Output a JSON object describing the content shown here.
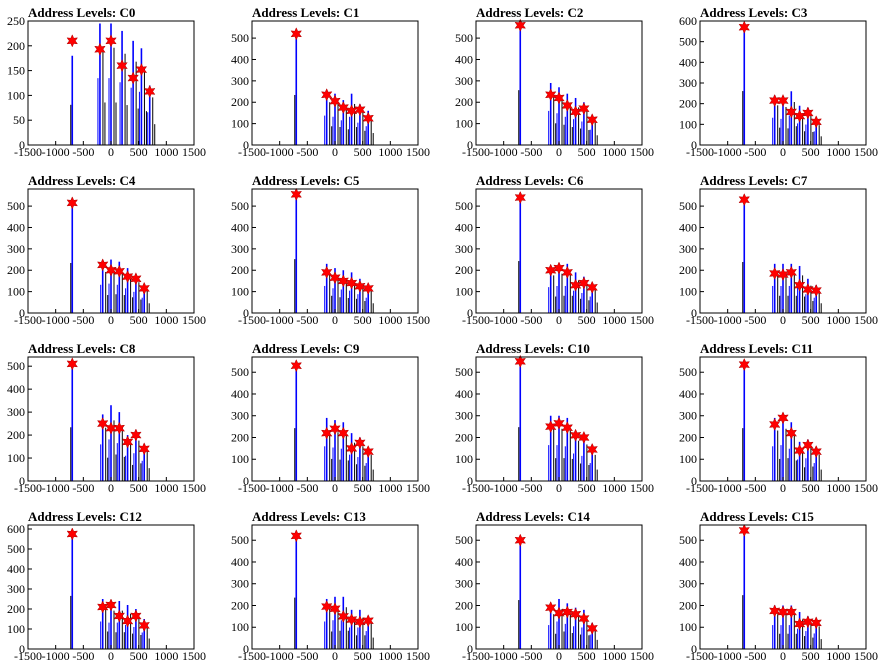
{
  "colors": {
    "histogram": "#0000ff",
    "secondary": "#000000",
    "marker": "#ff0000",
    "axis": "#000000"
  },
  "marker_icon": "red-star-marker",
  "chart_data": [
    {
      "type": "histogram",
      "title": "Address Levels: C0",
      "xlim": [
        -1500,
        1500
      ],
      "ylim": [
        0,
        250
      ],
      "yticks": [
        0,
        50,
        100,
        150,
        200,
        250
      ],
      "xticks": [
        -1500,
        -1000,
        -500,
        0,
        500,
        1000,
        1500
      ],
      "peaks": [
        [
          -700,
          180
        ],
        [
          -200,
          245
        ],
        [
          0,
          245
        ],
        [
          200,
          230
        ],
        [
          400,
          210
        ],
        [
          550,
          195
        ],
        [
          700,
          120
        ]
      ],
      "markers": [
        [
          -700,
          210
        ],
        [
          -200,
          193
        ],
        [
          0,
          210
        ],
        [
          200,
          160
        ],
        [
          400,
          135
        ],
        [
          550,
          152
        ],
        [
          700,
          108
        ]
      ]
    },
    {
      "type": "histogram",
      "title": "Address Levels: C1",
      "xlim": [
        -1500,
        1500
      ],
      "ylim": [
        0,
        580
      ],
      "yticks": [
        0,
        100,
        200,
        300,
        400,
        500
      ],
      "xticks": [
        -1500,
        -1000,
        -500,
        0,
        500,
        1000,
        1500
      ],
      "peaks": [
        [
          -700,
          520
        ],
        [
          -150,
          250
        ],
        [
          0,
          240
        ],
        [
          150,
          210
        ],
        [
          300,
          240
        ],
        [
          450,
          190
        ],
        [
          600,
          160
        ]
      ],
      "markers": [
        [
          -700,
          520
        ],
        [
          -150,
          235
        ],
        [
          0,
          205
        ],
        [
          150,
          175
        ],
        [
          300,
          160
        ],
        [
          450,
          165
        ],
        [
          600,
          125
        ]
      ]
    },
    {
      "type": "histogram",
      "title": "Address Levels: C2",
      "xlim": [
        -1500,
        1500
      ],
      "ylim": [
        0,
        580
      ],
      "yticks": [
        0,
        100,
        200,
        300,
        400,
        500
      ],
      "xticks": [
        -1500,
        -1000,
        -500,
        0,
        500,
        1000,
        1500
      ],
      "peaks": [
        [
          -700,
          570
        ],
        [
          -150,
          290
        ],
        [
          0,
          270
        ],
        [
          150,
          240
        ],
        [
          300,
          220
        ],
        [
          450,
          200
        ],
        [
          600,
          130
        ]
      ],
      "markers": [
        [
          -700,
          560
        ],
        [
          -150,
          235
        ],
        [
          0,
          220
        ],
        [
          150,
          185
        ],
        [
          300,
          155
        ],
        [
          450,
          170
        ],
        [
          600,
          118
        ]
      ]
    },
    {
      "type": "histogram",
      "title": "Address Levels: C3",
      "xlim": [
        -1500,
        1500
      ],
      "ylim": [
        0,
        600
      ],
      "yticks": [
        0,
        100,
        200,
        300,
        400,
        500,
        600
      ],
      "xticks": [
        -1500,
        -1000,
        -500,
        0,
        500,
        1000,
        1500
      ],
      "peaks": [
        [
          -700,
          580
        ],
        [
          -150,
          240
        ],
        [
          0,
          230
        ],
        [
          150,
          260
        ],
        [
          300,
          190
        ],
        [
          450,
          180
        ],
        [
          600,
          120
        ]
      ],
      "markers": [
        [
          -700,
          570
        ],
        [
          -150,
          215
        ],
        [
          0,
          215
        ],
        [
          150,
          160
        ],
        [
          300,
          140
        ],
        [
          450,
          155
        ],
        [
          600,
          112
        ]
      ]
    },
    {
      "type": "histogram",
      "title": "Address Levels: C4",
      "xlim": [
        -1500,
        1500
      ],
      "ylim": [
        0,
        580
      ],
      "yticks": [
        0,
        100,
        200,
        300,
        400,
        500
      ],
      "xticks": [
        -1500,
        -1000,
        -500,
        0,
        500,
        1000,
        1500
      ],
      "peaks": [
        [
          -700,
          520
        ],
        [
          -150,
          240
        ],
        [
          0,
          250
        ],
        [
          150,
          240
        ],
        [
          300,
          210
        ],
        [
          450,
          180
        ],
        [
          600,
          130
        ]
      ],
      "markers": [
        [
          -700,
          515
        ],
        [
          -150,
          225
        ],
        [
          0,
          200
        ],
        [
          150,
          195
        ],
        [
          300,
          170
        ],
        [
          450,
          160
        ],
        [
          600,
          115
        ]
      ]
    },
    {
      "type": "histogram",
      "title": "Address Levels: C5",
      "xlim": [
        -1500,
        1500
      ],
      "ylim": [
        0,
        580
      ],
      "yticks": [
        0,
        100,
        200,
        300,
        400,
        500
      ],
      "xticks": [
        -1500,
        -1000,
        -500,
        0,
        500,
        1000,
        1500
      ],
      "peaks": [
        [
          -700,
          560
        ],
        [
          -150,
          230
        ],
        [
          0,
          210
        ],
        [
          150,
          200
        ],
        [
          300,
          190
        ],
        [
          450,
          160
        ],
        [
          600,
          130
        ]
      ],
      "markers": [
        [
          -700,
          555
        ],
        [
          -150,
          190
        ],
        [
          0,
          165
        ],
        [
          150,
          150
        ],
        [
          300,
          140
        ],
        [
          450,
          125
        ],
        [
          600,
          115
        ]
      ]
    },
    {
      "type": "histogram",
      "title": "Address Levels: C6",
      "xlim": [
        -1500,
        1500
      ],
      "ylim": [
        0,
        580
      ],
      "yticks": [
        0,
        100,
        200,
        300,
        400,
        500
      ],
      "xticks": [
        -1500,
        -1000,
        -500,
        0,
        500,
        1000,
        1500
      ],
      "peaks": [
        [
          -700,
          540
        ],
        [
          -150,
          220
        ],
        [
          0,
          230
        ],
        [
          150,
          230
        ],
        [
          300,
          190
        ],
        [
          450,
          170
        ],
        [
          600,
          140
        ]
      ],
      "markers": [
        [
          -700,
          540
        ],
        [
          -150,
          200
        ],
        [
          0,
          210
        ],
        [
          150,
          190
        ],
        [
          300,
          130
        ],
        [
          450,
          140
        ],
        [
          600,
          120
        ]
      ]
    },
    {
      "type": "histogram",
      "title": "Address Levels: C7",
      "xlim": [
        -1500,
        1500
      ],
      "ylim": [
        0,
        580
      ],
      "yticks": [
        0,
        100,
        200,
        300,
        400,
        500
      ],
      "xticks": [
        -1500,
        -1000,
        -500,
        0,
        500,
        1000,
        1500
      ],
      "peaks": [
        [
          -700,
          530
        ],
        [
          -150,
          230
        ],
        [
          0,
          230
        ],
        [
          150,
          230
        ],
        [
          300,
          220
        ],
        [
          450,
          160
        ],
        [
          600,
          130
        ]
      ],
      "markers": [
        [
          -700,
          530
        ],
        [
          -150,
          185
        ],
        [
          0,
          180
        ],
        [
          150,
          190
        ],
        [
          300,
          130
        ],
        [
          450,
          110
        ],
        [
          600,
          105
        ]
      ]
    },
    {
      "type": "histogram",
      "title": "Address Levels: C8",
      "xlim": [
        -1500,
        1500
      ],
      "ylim": [
        0,
        540
      ],
      "yticks": [
        0,
        100,
        200,
        300,
        400,
        500
      ],
      "xticks": [
        -1500,
        -1000,
        -500,
        0,
        500,
        1000,
        1500
      ],
      "peaks": [
        [
          -700,
          520
        ],
        [
          -150,
          290
        ],
        [
          0,
          330
        ],
        [
          150,
          300
        ],
        [
          300,
          200
        ],
        [
          450,
          220
        ],
        [
          600,
          160
        ]
      ],
      "markers": [
        [
          -700,
          510
        ],
        [
          -150,
          250
        ],
        [
          0,
          230
        ],
        [
          150,
          230
        ],
        [
          300,
          170
        ],
        [
          450,
          200
        ],
        [
          600,
          140
        ]
      ]
    },
    {
      "type": "histogram",
      "title": "Address Levels: C9",
      "xlim": [
        -1500,
        1500
      ],
      "ylim": [
        0,
        570
      ],
      "yticks": [
        0,
        100,
        200,
        300,
        400,
        500
      ],
      "xticks": [
        -1500,
        -1000,
        -500,
        0,
        500,
        1000,
        1500
      ],
      "peaks": [
        [
          -700,
          540
        ],
        [
          -150,
          290
        ],
        [
          0,
          280
        ],
        [
          150,
          270
        ],
        [
          300,
          220
        ],
        [
          450,
          200
        ],
        [
          600,
          150
        ]
      ],
      "markers": [
        [
          -700,
          530
        ],
        [
          -150,
          220
        ],
        [
          0,
          240
        ],
        [
          150,
          220
        ],
        [
          300,
          150
        ],
        [
          450,
          175
        ],
        [
          600,
          135
        ]
      ]
    },
    {
      "type": "histogram",
      "title": "Address Levels: C10",
      "xlim": [
        -1500,
        1500
      ],
      "ylim": [
        0,
        570
      ],
      "yticks": [
        0,
        100,
        200,
        300,
        400,
        500
      ],
      "xticks": [
        -1500,
        -1000,
        -500,
        0,
        500,
        1000,
        1500
      ],
      "peaks": [
        [
          -700,
          550
        ],
        [
          -150,
          300
        ],
        [
          0,
          300
        ],
        [
          150,
          290
        ],
        [
          300,
          230
        ],
        [
          450,
          210
        ],
        [
          600,
          150
        ]
      ],
      "markers": [
        [
          -700,
          550
        ],
        [
          -150,
          250
        ],
        [
          0,
          265
        ],
        [
          150,
          245
        ],
        [
          300,
          210
        ],
        [
          450,
          200
        ],
        [
          600,
          145
        ]
      ]
    },
    {
      "type": "histogram",
      "title": "Address Levels: C11",
      "xlim": [
        -1500,
        1500
      ],
      "ylim": [
        0,
        570
      ],
      "yticks": [
        0,
        100,
        200,
        300,
        400,
        500
      ],
      "xticks": [
        -1500,
        -1000,
        -500,
        0,
        500,
        1000,
        1500
      ],
      "peaks": [
        [
          -700,
          540
        ],
        [
          -150,
          290
        ],
        [
          0,
          300
        ],
        [
          150,
          270
        ],
        [
          300,
          180
        ],
        [
          450,
          190
        ],
        [
          600,
          150
        ]
      ],
      "markers": [
        [
          -700,
          535
        ],
        [
          -150,
          260
        ],
        [
          0,
          290
        ],
        [
          150,
          220
        ],
        [
          300,
          140
        ],
        [
          450,
          165
        ],
        [
          600,
          135
        ]
      ]
    },
    {
      "type": "histogram",
      "title": "Address Levels: C12",
      "xlim": [
        -1500,
        1500
      ],
      "ylim": [
        0,
        620
      ],
      "yticks": [
        0,
        100,
        200,
        300,
        400,
        500,
        600
      ],
      "xticks": [
        -1500,
        -1000,
        -500,
        0,
        500,
        1000,
        1500
      ],
      "peaks": [
        [
          -700,
          590
        ],
        [
          -150,
          250
        ],
        [
          0,
          240
        ],
        [
          150,
          240
        ],
        [
          300,
          220
        ],
        [
          450,
          200
        ],
        [
          600,
          150
        ]
      ],
      "markers": [
        [
          -700,
          575
        ],
        [
          -150,
          210
        ],
        [
          0,
          220
        ],
        [
          150,
          165
        ],
        [
          300,
          140
        ],
        [
          450,
          165
        ],
        [
          600,
          118
        ]
      ]
    },
    {
      "type": "histogram",
      "title": "Address Levels: C13",
      "xlim": [
        -1500,
        1500
      ],
      "ylim": [
        0,
        570
      ],
      "yticks": [
        0,
        100,
        200,
        300,
        400,
        500
      ],
      "xticks": [
        -1500,
        -1000,
        -500,
        0,
        500,
        1000,
        1500
      ],
      "peaks": [
        [
          -700,
          525
        ],
        [
          -150,
          230
        ],
        [
          0,
          240
        ],
        [
          150,
          240
        ],
        [
          300,
          180
        ],
        [
          450,
          180
        ],
        [
          600,
          150
        ]
      ],
      "markers": [
        [
          -700,
          520
        ],
        [
          -150,
          195
        ],
        [
          0,
          185
        ],
        [
          150,
          150
        ],
        [
          300,
          135
        ],
        [
          450,
          125
        ],
        [
          600,
          130
        ]
      ]
    },
    {
      "type": "histogram",
      "title": "Address Levels: C14",
      "xlim": [
        -1500,
        1500
      ],
      "ylim": [
        0,
        570
      ],
      "yticks": [
        0,
        100,
        200,
        300,
        400,
        500
      ],
      "xticks": [
        -1500,
        -1000,
        -500,
        0,
        500,
        1000,
        1500
      ],
      "peaks": [
        [
          -700,
          500
        ],
        [
          -150,
          200
        ],
        [
          0,
          230
        ],
        [
          150,
          210
        ],
        [
          300,
          190
        ],
        [
          450,
          180
        ],
        [
          600,
          120
        ]
      ],
      "markers": [
        [
          -700,
          500
        ],
        [
          -150,
          190
        ],
        [
          0,
          165
        ],
        [
          150,
          170
        ],
        [
          300,
          160
        ],
        [
          450,
          140
        ],
        [
          600,
          95
        ]
      ]
    },
    {
      "type": "histogram",
      "title": "Address Levels: C15",
      "xlim": [
        -1500,
        1500
      ],
      "ylim": [
        0,
        570
      ],
      "yticks": [
        0,
        100,
        200,
        300,
        400,
        500
      ],
      "xticks": [
        -1500,
        -1000,
        -500,
        0,
        500,
        1000,
        1500
      ],
      "peaks": [
        [
          -700,
          550
        ],
        [
          -150,
          200
        ],
        [
          0,
          200
        ],
        [
          150,
          200
        ],
        [
          300,
          170
        ],
        [
          450,
          150
        ],
        [
          600,
          130
        ]
      ],
      "markers": [
        [
          -700,
          545
        ],
        [
          -150,
          175
        ],
        [
          0,
          170
        ],
        [
          150,
          170
        ],
        [
          300,
          115
        ],
        [
          450,
          125
        ],
        [
          600,
          120
        ]
      ]
    }
  ]
}
